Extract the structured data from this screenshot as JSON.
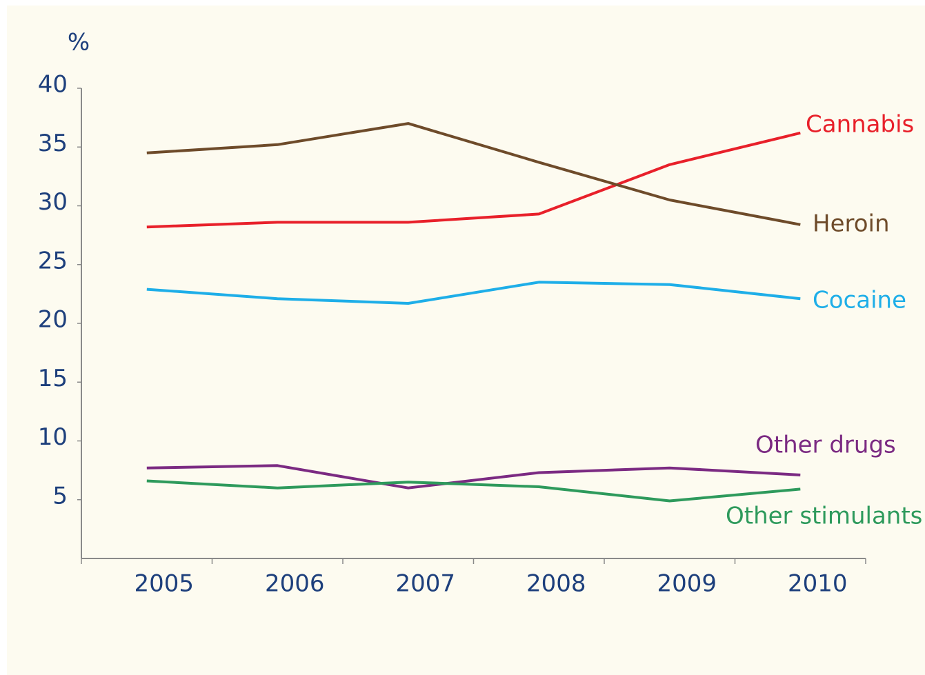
{
  "chart_data": {
    "type": "line",
    "y_axis_label": "%",
    "categories": [
      "2005",
      "2006",
      "2007",
      "2008",
      "2009",
      "2010"
    ],
    "ylim": [
      0,
      40
    ],
    "yticks": [
      5,
      10,
      15,
      20,
      25,
      30,
      35,
      40
    ],
    "series": [
      {
        "name": "Cannabis",
        "color": "#e8202a",
        "values": [
          28.2,
          28.6,
          28.6,
          29.3,
          33.5,
          36.2
        ]
      },
      {
        "name": "Heroin",
        "color": "#6e4b2a",
        "values": [
          34.5,
          35.2,
          37.0,
          33.7,
          30.5,
          28.4
        ]
      },
      {
        "name": "Cocaine",
        "color": "#1eaee8",
        "values": [
          22.9,
          22.1,
          21.7,
          23.5,
          23.3,
          22.1
        ]
      },
      {
        "name": "Other drugs",
        "color": "#7b2a82",
        "values": [
          7.7,
          7.9,
          6.0,
          7.3,
          7.7,
          7.1
        ]
      },
      {
        "name": "Other stimulants",
        "color": "#2e9a5c",
        "values": [
          6.6,
          6.0,
          6.5,
          6.1,
          4.9,
          5.9
        ]
      }
    ]
  }
}
